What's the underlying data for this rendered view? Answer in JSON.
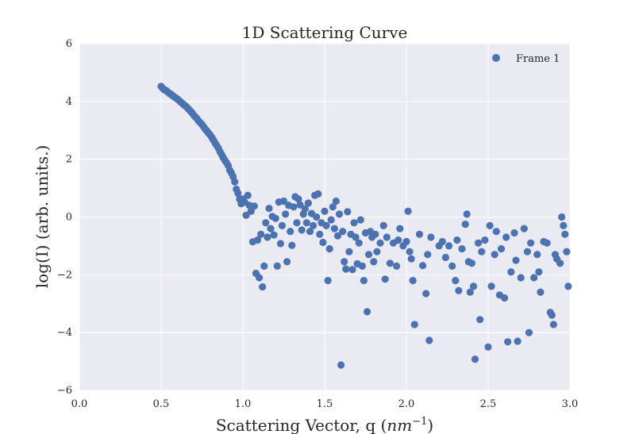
{
  "chart_data": {
    "type": "scatter",
    "title": "1D Scattering Curve",
    "xlabel": "Scattering Vector, q (",
    "xlabel_unit": "nm",
    "xlabel_exp": "−1",
    "xlabel_close": ")",
    "ylabel": "log(I) (arb. units.)",
    "xlim": [
      0.0,
      3.0
    ],
    "ylim": [
      -6,
      6
    ],
    "xticks": [
      0.0,
      0.5,
      1.0,
      1.5,
      2.0,
      2.5,
      3.0
    ],
    "yticks": [
      -6,
      -4,
      -2,
      0,
      2,
      4,
      6
    ],
    "xtick_labels": [
      "0.0",
      "0.5",
      "1.0",
      "1.5",
      "2.0",
      "2.5",
      "3.0"
    ],
    "ytick_labels": [
      "−6",
      "−4",
      "−2",
      "0",
      "2",
      "4",
      "6"
    ],
    "grid": true,
    "legend_position": "top-right",
    "colors": {
      "background": "#eaeaf2",
      "grid": "#ffffff",
      "marker": "#4c72b0"
    },
    "series": [
      {
        "name": "Frame 1",
        "points": [
          [
            0.5,
            4.52
          ],
          [
            0.51,
            4.45
          ],
          [
            0.52,
            4.4
          ],
          [
            0.53,
            4.38
          ],
          [
            0.54,
            4.33
          ],
          [
            0.55,
            4.28
          ],
          [
            0.56,
            4.25
          ],
          [
            0.57,
            4.2
          ],
          [
            0.58,
            4.16
          ],
          [
            0.59,
            4.12
          ],
          [
            0.6,
            4.08
          ],
          [
            0.61,
            4.03
          ],
          [
            0.62,
            3.98
          ],
          [
            0.63,
            3.93
          ],
          [
            0.64,
            3.88
          ],
          [
            0.65,
            3.84
          ],
          [
            0.66,
            3.78
          ],
          [
            0.67,
            3.72
          ],
          [
            0.68,
            3.66
          ],
          [
            0.69,
            3.6
          ],
          [
            0.7,
            3.52
          ],
          [
            0.71,
            3.46
          ],
          [
            0.72,
            3.4
          ],
          [
            0.73,
            3.32
          ],
          [
            0.74,
            3.26
          ],
          [
            0.75,
            3.2
          ],
          [
            0.76,
            3.12
          ],
          [
            0.77,
            3.04
          ],
          [
            0.78,
            2.98
          ],
          [
            0.79,
            2.9
          ],
          [
            0.8,
            2.84
          ],
          [
            0.81,
            2.75
          ],
          [
            0.82,
            2.66
          ],
          [
            0.83,
            2.56
          ],
          [
            0.84,
            2.48
          ],
          [
            0.85,
            2.38
          ],
          [
            0.86,
            2.26
          ],
          [
            0.87,
            2.16
          ],
          [
            0.88,
            2.05
          ],
          [
            0.89,
            1.96
          ],
          [
            0.9,
            1.88
          ],
          [
            0.91,
            1.78
          ],
          [
            0.92,
            1.62
          ],
          [
            0.93,
            1.52
          ],
          [
            0.94,
            1.4
          ],
          [
            0.95,
            1.22
          ],
          [
            0.96,
            0.96
          ],
          [
            0.97,
            0.82
          ],
          [
            0.98,
            0.62
          ],
          [
            0.99,
            0.46
          ],
          [
            1.0,
            0.62
          ],
          [
            1.01,
            0.52
          ],
          [
            1.02,
            0.06
          ],
          [
            1.03,
            0.75
          ],
          [
            1.04,
            0.4
          ],
          [
            1.05,
            0.2
          ],
          [
            1.06,
            -0.86
          ],
          [
            1.07,
            0.38
          ],
          [
            1.08,
            -1.95
          ],
          [
            1.09,
            -0.8
          ],
          [
            1.1,
            -2.1
          ],
          [
            1.11,
            -0.6
          ],
          [
            1.12,
            -2.42
          ],
          [
            1.13,
            -1.7
          ],
          [
            1.14,
            -0.2
          ],
          [
            1.15,
            -0.7
          ],
          [
            1.16,
            0.3
          ],
          [
            1.17,
            -0.4
          ],
          [
            1.18,
            0.02
          ],
          [
            1.19,
            -0.62
          ],
          [
            1.2,
            -0.05
          ],
          [
            1.21,
            -1.7
          ],
          [
            1.22,
            0.52
          ],
          [
            1.23,
            -0.92
          ],
          [
            1.24,
            -0.3
          ],
          [
            1.25,
            0.55
          ],
          [
            1.26,
            0.1
          ],
          [
            1.27,
            -1.55
          ],
          [
            1.28,
            0.4
          ],
          [
            1.29,
            -0.5
          ],
          [
            1.3,
            -0.98
          ],
          [
            1.31,
            0.35
          ],
          [
            1.32,
            0.7
          ],
          [
            1.33,
            -0.2
          ],
          [
            1.34,
            0.62
          ],
          [
            1.35,
            0.42
          ],
          [
            1.36,
            -0.45
          ],
          [
            1.37,
            0.1
          ],
          [
            1.38,
            0.28
          ],
          [
            1.39,
            -0.2
          ],
          [
            1.4,
            0.48
          ],
          [
            1.41,
            -0.5
          ],
          [
            1.42,
            0.12
          ],
          [
            1.43,
            -0.3
          ],
          [
            1.44,
            0.75
          ],
          [
            1.45,
            0.0
          ],
          [
            1.46,
            0.8
          ],
          [
            1.47,
            -0.6
          ],
          [
            1.48,
            -0.2
          ],
          [
            1.49,
            -0.88
          ],
          [
            1.5,
            0.2
          ],
          [
            1.51,
            -0.3
          ],
          [
            1.52,
            -2.2
          ],
          [
            1.53,
            -1.1
          ],
          [
            1.54,
            -0.1
          ],
          [
            1.55,
            0.35
          ],
          [
            1.56,
            -0.4
          ],
          [
            1.57,
            0.55
          ],
          [
            1.58,
            -0.65
          ],
          [
            1.59,
            0.1
          ],
          [
            1.6,
            -5.12
          ],
          [
            1.61,
            -0.5
          ],
          [
            1.62,
            -1.55
          ],
          [
            1.63,
            -1.8
          ],
          [
            1.64,
            0.18
          ],
          [
            1.65,
            -1.2
          ],
          [
            1.66,
            -0.6
          ],
          [
            1.67,
            -1.82
          ],
          [
            1.68,
            -0.2
          ],
          [
            1.69,
            -0.7
          ],
          [
            1.7,
            -1.62
          ],
          [
            1.71,
            -0.9
          ],
          [
            1.72,
            -0.1
          ],
          [
            1.73,
            -1.7
          ],
          [
            1.74,
            -2.2
          ],
          [
            1.75,
            -0.55
          ],
          [
            1.76,
            -3.28
          ],
          [
            1.77,
            -1.3
          ],
          [
            1.78,
            -0.5
          ],
          [
            1.79,
            -0.7
          ],
          [
            1.8,
            -1.55
          ],
          [
            1.81,
            -0.6
          ],
          [
            1.82,
            -1.2
          ],
          [
            1.84,
            -0.9
          ],
          [
            1.86,
            -0.3
          ],
          [
            1.87,
            -2.15
          ],
          [
            1.88,
            -0.7
          ],
          [
            1.9,
            -1.6
          ],
          [
            1.92,
            -0.9
          ],
          [
            1.94,
            -1.7
          ],
          [
            1.95,
            -0.8
          ],
          [
            1.96,
            -0.4
          ],
          [
            1.98,
            -1.0
          ],
          [
            2.0,
            -0.85
          ],
          [
            2.01,
            0.2
          ],
          [
            2.02,
            -1.2
          ],
          [
            2.03,
            -1.45
          ],
          [
            2.04,
            -2.2
          ],
          [
            2.05,
            -3.72
          ],
          [
            2.08,
            -0.6
          ],
          [
            2.1,
            -1.68
          ],
          [
            2.12,
            -2.65
          ],
          [
            2.13,
            -1.3
          ],
          [
            2.14,
            -4.27
          ],
          [
            2.15,
            -0.7
          ],
          [
            2.2,
            -1.0
          ],
          [
            2.22,
            -0.85
          ],
          [
            2.24,
            -1.4
          ],
          [
            2.26,
            -1.0
          ],
          [
            2.28,
            -1.7
          ],
          [
            2.3,
            -2.2
          ],
          [
            2.31,
            -0.8
          ],
          [
            2.32,
            -2.55
          ],
          [
            2.34,
            -1.1
          ],
          [
            2.36,
            -0.25
          ],
          [
            2.37,
            0.1
          ],
          [
            2.38,
            -1.55
          ],
          [
            2.39,
            -2.6
          ],
          [
            2.4,
            -1.6
          ],
          [
            2.41,
            -2.4
          ],
          [
            2.42,
            -4.92
          ],
          [
            2.44,
            -0.9
          ],
          [
            2.45,
            -3.55
          ],
          [
            2.46,
            -1.2
          ],
          [
            2.48,
            -0.8
          ],
          [
            2.5,
            -4.5
          ],
          [
            2.51,
            -0.3
          ],
          [
            2.52,
            -2.4
          ],
          [
            2.54,
            -1.3
          ],
          [
            2.55,
            -0.5
          ],
          [
            2.57,
            -2.7
          ],
          [
            2.58,
            -1.1
          ],
          [
            2.6,
            -2.8
          ],
          [
            2.61,
            -0.7
          ],
          [
            2.62,
            -4.32
          ],
          [
            2.64,
            -1.9
          ],
          [
            2.66,
            -0.55
          ],
          [
            2.67,
            -1.5
          ],
          [
            2.68,
            -4.3
          ],
          [
            2.7,
            -2.1
          ],
          [
            2.72,
            -0.4
          ],
          [
            2.74,
            -1.2
          ],
          [
            2.75,
            -4.0
          ],
          [
            2.76,
            -0.9
          ],
          [
            2.78,
            -2.1
          ],
          [
            2.8,
            -1.3
          ],
          [
            2.81,
            -1.9
          ],
          [
            2.82,
            -2.6
          ],
          [
            2.84,
            -0.85
          ],
          [
            2.86,
            -0.9
          ],
          [
            2.88,
            -3.3
          ],
          [
            2.89,
            -3.4
          ],
          [
            2.9,
            -3.72
          ],
          [
            2.91,
            -1.3
          ],
          [
            2.92,
            -1.45
          ],
          [
            2.94,
            -1.6
          ],
          [
            2.95,
            0.0
          ],
          [
            2.96,
            -0.3
          ],
          [
            2.97,
            -0.6
          ],
          [
            2.98,
            -1.2
          ],
          [
            2.99,
            -2.4
          ]
        ]
      }
    ]
  }
}
